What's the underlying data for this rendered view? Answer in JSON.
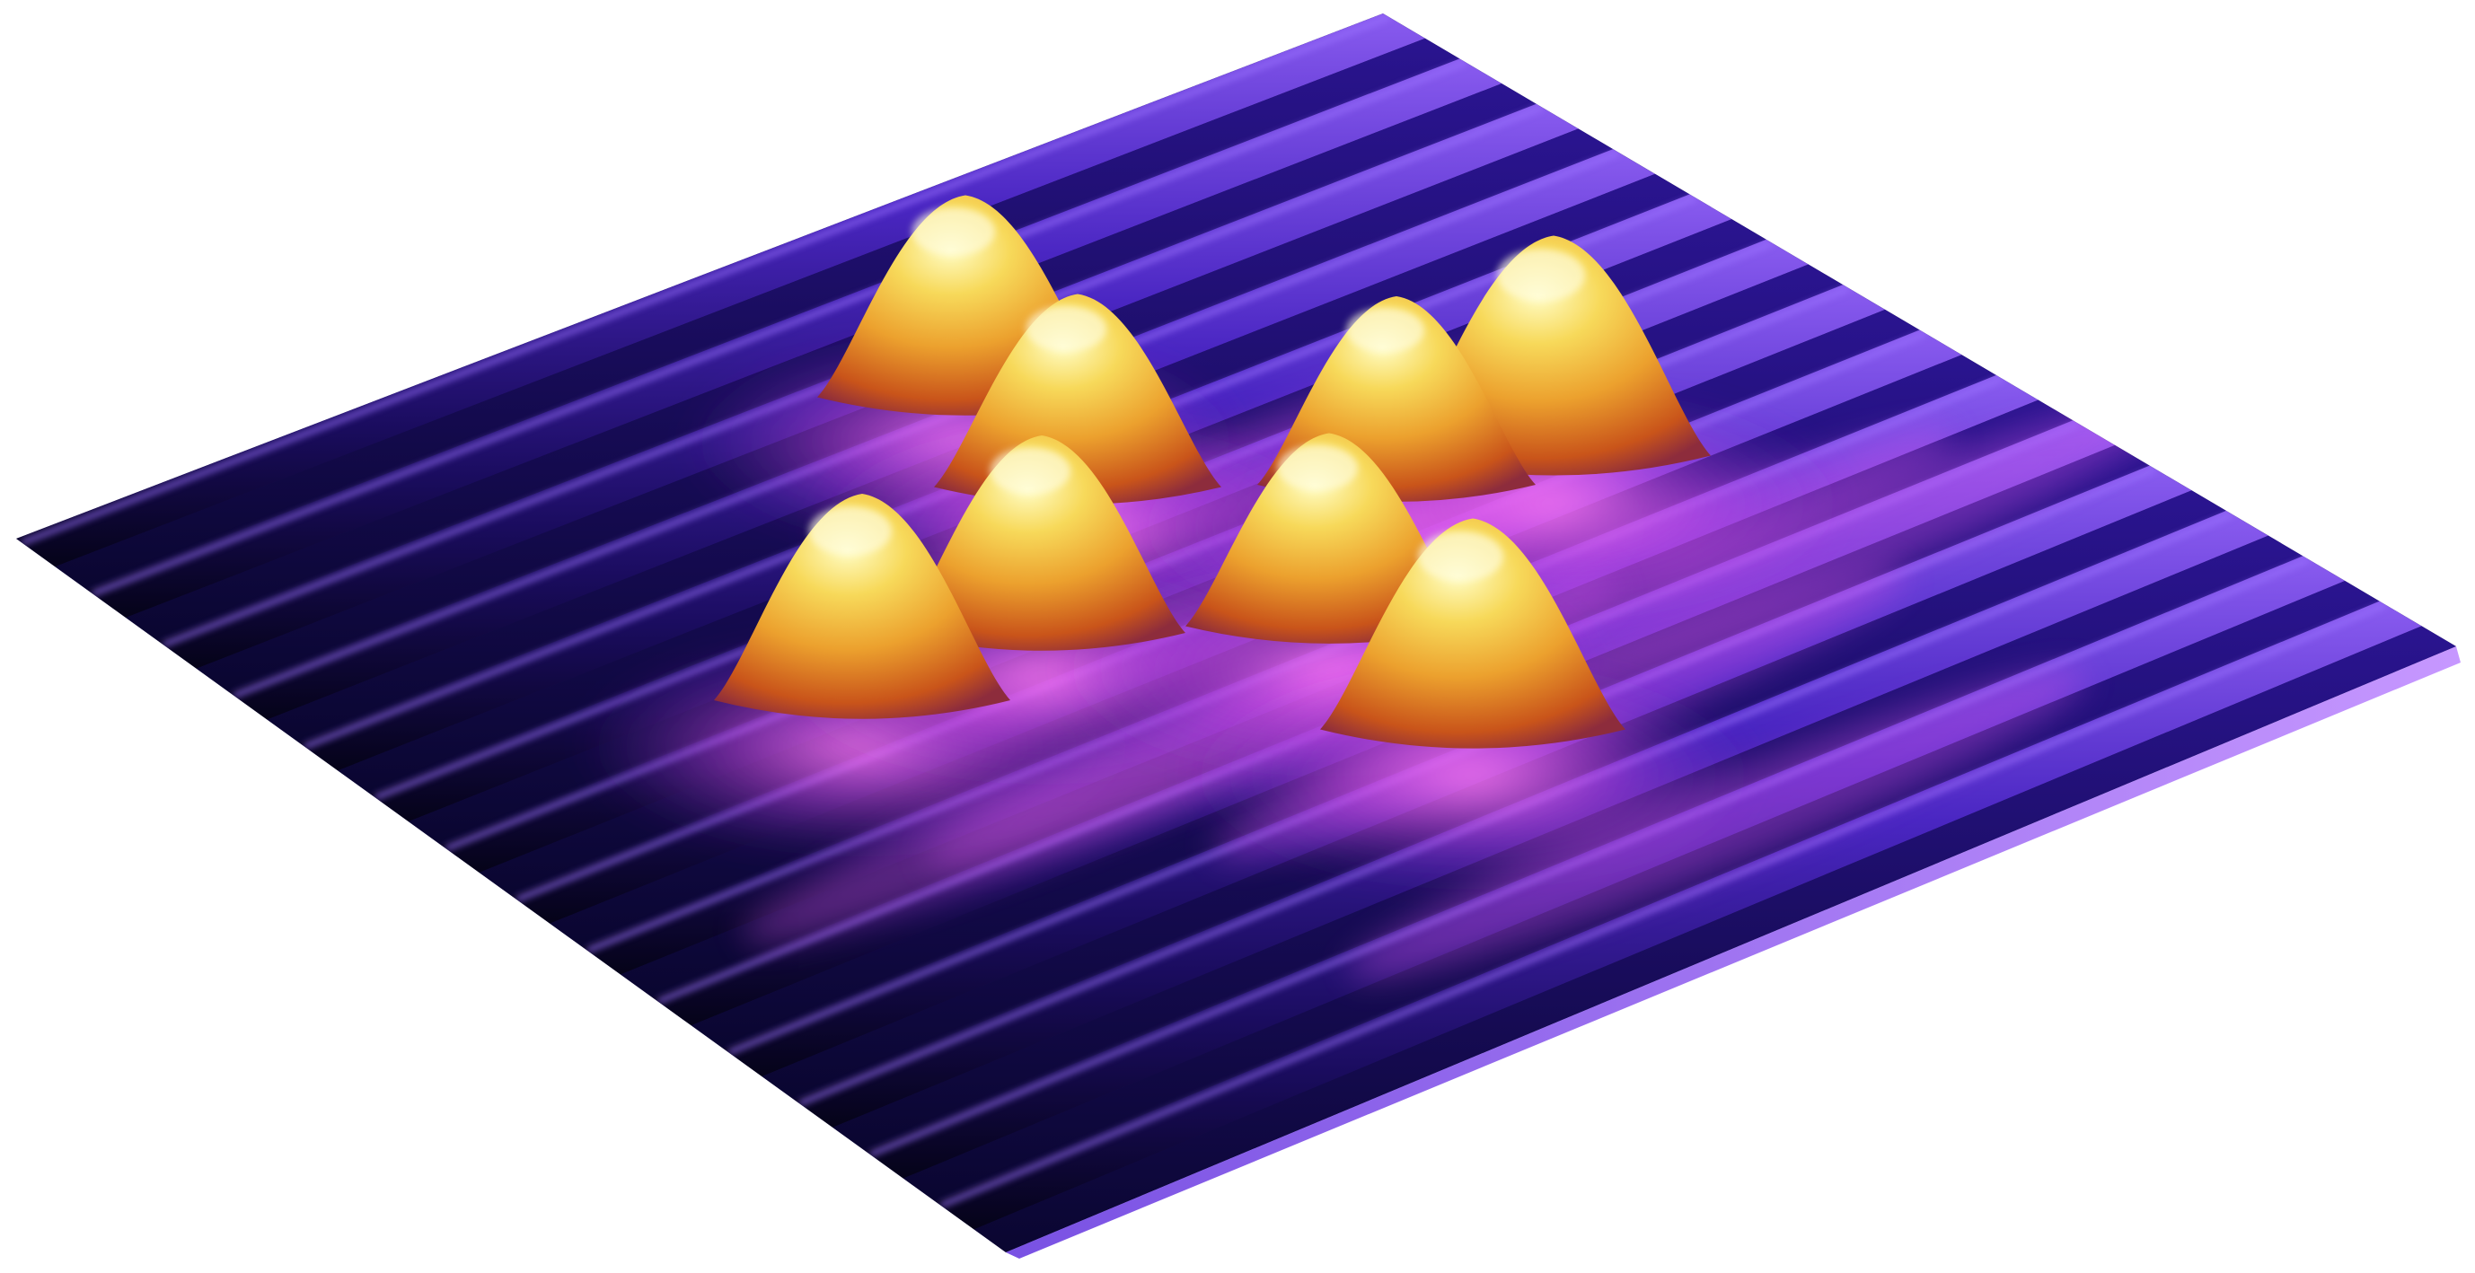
{
  "image": {
    "background_color": "#ffffff",
    "palette": {
      "deep": "#07052a",
      "mid": "#3b1ea8",
      "ridge": "#7b4fe6",
      "glow": "#e05af0",
      "peak_base": "#d66a1a",
      "peak_mid": "#f0b73a",
      "peak_top": "#fffab0",
      "edge": "#b67cff"
    },
    "ridge_count": 14,
    "peak_count": 8
  }
}
